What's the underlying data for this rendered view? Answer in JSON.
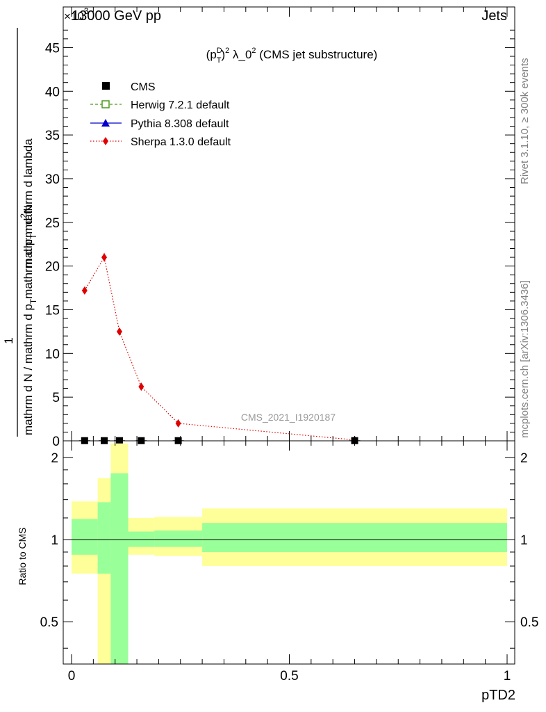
{
  "header": {
    "left_label": "13000 GeV pp",
    "right_label": "Jets",
    "exponent_label": "×10",
    "exponent_power": "3"
  },
  "side_labels": {
    "rivet": "Rivet 3.1.10, ≥ 300k events",
    "mcplots": "mcplots.cern.ch [arXiv:1306.3436]"
  },
  "chart_data": [
    {
      "type": "line",
      "title": "(p_T^D)^2 λ_0^2 (CMS jet substructure)",
      "title_parts": {
        "a": "(p",
        "sup1": "D",
        "sub1": "T",
        "b": ")",
        "sup2": "2",
        "c": " λ_0",
        "sup3": "2",
        "d": " (CMS jet substructure)"
      },
      "watermark": "CMS_2021_I1920187",
      "ylabel": {
        "numer": "1",
        "denom_main": "mathrm d N / mathrm d p",
        "denom_sub": "T",
        "denom_tail": "mathrm d p",
        "denom_sub2": "T",
        "denom_tail2": " mathrm d lambda",
        "upper": "mathrm d",
        "upper_sup": "2",
        "upper_tail": "N"
      },
      "xlim": [
        0,
        1
      ],
      "ylim": [
        0,
        47.5
      ],
      "y_ticks": [
        0,
        5,
        10,
        15,
        20,
        25,
        30,
        35,
        40,
        45
      ],
      "y_tick_labels": [
        "0",
        "5",
        "10",
        "15",
        "20",
        "25",
        "30",
        "35",
        "40",
        "45"
      ],
      "legend_position": "top-left",
      "series": [
        {
          "name": "CMS",
          "color": "#000000",
          "marker": "square",
          "x": [
            0.03,
            0.075,
            0.11,
            0.16,
            0.245,
            0.65
          ],
          "y": [
            0.02,
            0.02,
            0.02,
            0.02,
            0.02,
            0.02
          ]
        },
        {
          "name": "Herwig 7.2.1 default",
          "color": "#4a9a1a",
          "marker": "open-square",
          "dash": "dashed",
          "x": [
            0.03,
            0.075,
            0.11,
            0.16,
            0.245,
            0.65
          ],
          "y": [
            0.02,
            0.02,
            0.02,
            0.02,
            0.02,
            0.02
          ]
        },
        {
          "name": "Pythia 8.308 default",
          "color": "#0000cc",
          "marker": "triangle",
          "dash": "solid",
          "x": [
            0.03,
            0.075,
            0.11,
            0.16,
            0.245,
            0.65
          ],
          "y": [
            0.02,
            0.02,
            0.02,
            0.02,
            0.02,
            0.02
          ]
        },
        {
          "name": "Sherpa 1.3.0 default",
          "color": "#e00000",
          "marker": "diamond",
          "dash": "dotted",
          "x": [
            0.03,
            0.075,
            0.11,
            0.16,
            0.245,
            0.65
          ],
          "y": [
            17.2,
            21.0,
            12.5,
            6.2,
            2.0,
            0.1
          ],
          "yerr": [
            0.3,
            0.5,
            0.3,
            0.2,
            0.1,
            0.0
          ]
        }
      ]
    },
    {
      "type": "area",
      "ylabel": "Ratio to CMS",
      "xlabel": "pTD2",
      "xlim": [
        0,
        1
      ],
      "ylim": [
        0.35,
        2.3
      ],
      "y_scale": "log",
      "x_ticks": [
        0,
        0.5,
        1
      ],
      "x_tick_labels": [
        "0",
        "0.5",
        "1"
      ],
      "y_ticks": [
        0.5,
        1,
        2
      ],
      "y_tick_labels": [
        "0.5",
        "1",
        "2"
      ],
      "reference_line": 1,
      "band_colors": {
        "inner": "#99ff99",
        "outer": "#ffff99"
      },
      "bins": [
        {
          "x0": 0.0,
          "x1": 0.06,
          "inner": [
            0.88,
            1.19
          ],
          "outer": [
            0.75,
            1.38
          ]
        },
        {
          "x0": 0.06,
          "x1": 0.09,
          "inner": [
            0.75,
            1.37
          ],
          "outer": [
            0.3,
            1.68
          ]
        },
        {
          "x0": 0.09,
          "x1": 0.13,
          "inner": [
            0.3,
            1.75
          ],
          "outer": [
            0.3,
            2.25
          ]
        },
        {
          "x0": 0.13,
          "x1": 0.19,
          "inner": [
            0.94,
            1.07
          ],
          "outer": [
            0.88,
            1.2
          ]
        },
        {
          "x0": 0.19,
          "x1": 0.3,
          "inner": [
            0.94,
            1.08
          ],
          "outer": [
            0.87,
            1.21
          ]
        },
        {
          "x0": 0.3,
          "x1": 1.0,
          "inner": [
            0.9,
            1.15
          ],
          "outer": [
            0.8,
            1.3
          ]
        }
      ]
    }
  ]
}
